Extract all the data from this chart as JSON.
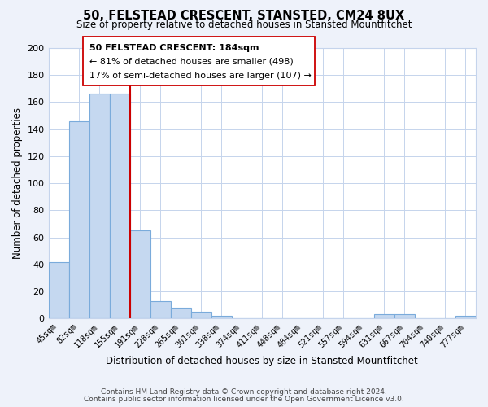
{
  "title": "50, FELSTEAD CRESCENT, STANSTED, CM24 8UX",
  "subtitle": "Size of property relative to detached houses in Stansted Mountfitchet",
  "xlabel": "Distribution of detached houses by size in Stansted Mountfitchet",
  "ylabel": "Number of detached properties",
  "bar_labels": [
    "45sqm",
    "82sqm",
    "118sqm",
    "155sqm",
    "191sqm",
    "228sqm",
    "265sqm",
    "301sqm",
    "338sqm",
    "374sqm",
    "411sqm",
    "448sqm",
    "484sqm",
    "521sqm",
    "557sqm",
    "594sqm",
    "631sqm",
    "667sqm",
    "704sqm",
    "740sqm",
    "777sqm"
  ],
  "bar_values": [
    42,
    146,
    166,
    166,
    65,
    13,
    8,
    5,
    2,
    0,
    0,
    0,
    0,
    0,
    0,
    0,
    3,
    3,
    0,
    0,
    2
  ],
  "ylim": [
    0,
    200
  ],
  "yticks": [
    0,
    20,
    40,
    60,
    80,
    100,
    120,
    140,
    160,
    180,
    200
  ],
  "bar_fill": "#c5d8f0",
  "bar_edge": "#7aabdb",
  "vline_color": "#cc0000",
  "vline_pos": 3.5,
  "annotation_text_line1": "50 FELSTEAD CRESCENT: 184sqm",
  "annotation_text_line2": "← 81% of detached houses are smaller (498)",
  "annotation_text_line3": "17% of semi-detached houses are larger (107) →",
  "footer1": "Contains HM Land Registry data © Crown copyright and database right 2024.",
  "footer2": "Contains public sector information licensed under the Open Government Licence v3.0.",
  "background_color": "#eef2fa",
  "plot_background": "#ffffff",
  "grid_color": "#c5d4ec"
}
